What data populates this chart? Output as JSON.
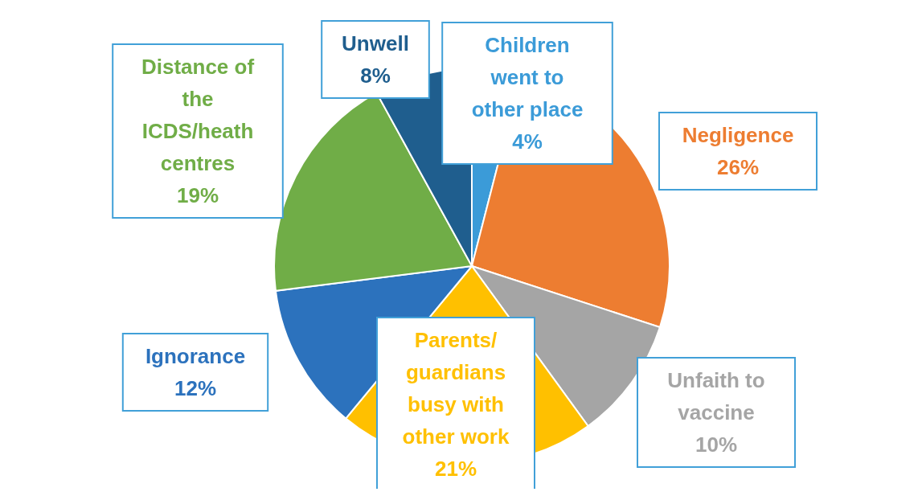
{
  "chart_data": {
    "type": "pie",
    "categories": [
      "Children went to other place",
      "Negligence",
      "Unfaith to vaccine",
      "Parents/ guardians busy with other work",
      "Ignorance",
      "Distance of the ICDS/heath centres",
      "Unwell"
    ],
    "values": [
      4,
      26,
      10,
      21,
      12,
      19,
      8
    ],
    "colors": [
      "#3b9bd8",
      "#ed7d31",
      "#a5a5a5",
      "#ffc000",
      "#2c72bd",
      "#70ad47",
      "#1f5e8e"
    ],
    "value_labels": [
      "4%",
      "26%",
      "10%",
      "21%",
      "12%",
      "19%",
      "8%"
    ]
  }
}
